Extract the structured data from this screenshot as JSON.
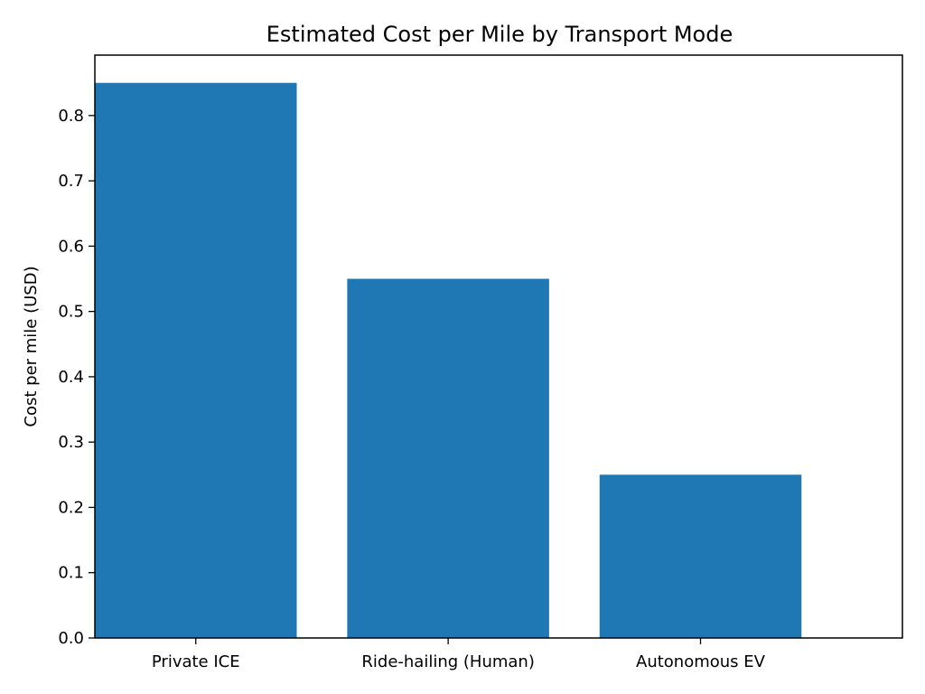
{
  "chart_data": {
    "type": "bar",
    "title": "Estimated Cost per Mile by Transport Mode",
    "xlabel": "",
    "ylabel": "Cost per mile (USD)",
    "categories": [
      "Private ICE",
      "Ride-hailing (Human)",
      "Autonomous EV"
    ],
    "values": [
      0.85,
      0.55,
      0.25
    ],
    "ylim": [
      0,
      0.8925
    ],
    "yticks": [
      "0.0",
      "0.1",
      "0.2",
      "0.3",
      "0.4",
      "0.5",
      "0.6",
      "0.7",
      "0.8"
    ],
    "grid": false,
    "bar_color": "#1f77b4"
  }
}
